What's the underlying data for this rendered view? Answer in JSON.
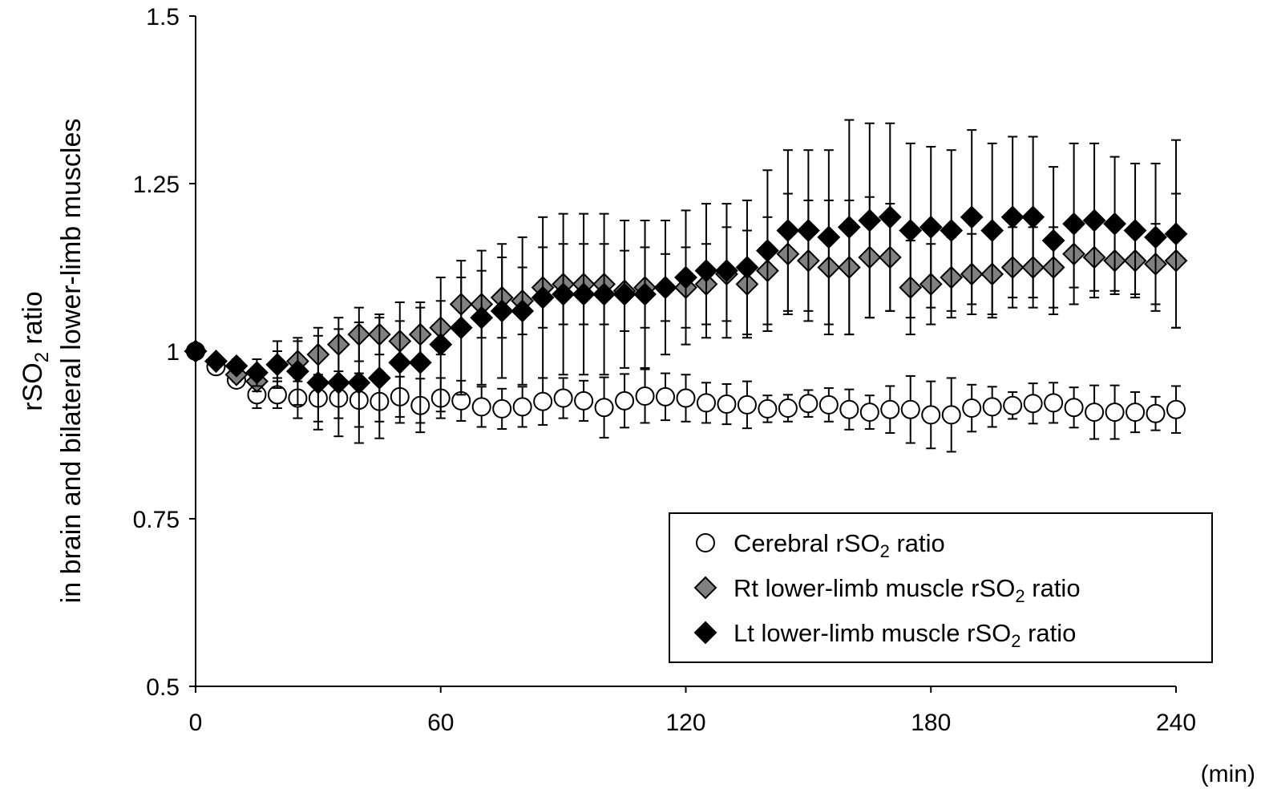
{
  "chart_data": {
    "type": "scatter",
    "title": "",
    "xlabel": "(min)",
    "ylabel_line1": "rSO2 ratio",
    "ylabel_line2": "in brain and bilateral lower-limb muscles",
    "xlim": [
      0,
      240
    ],
    "ylim": [
      0.5,
      1.5
    ],
    "xticks": [
      "0",
      "60",
      "120",
      "180",
      "240"
    ],
    "yticks": [
      "0.5",
      "0.75",
      "1",
      "1.25",
      "1.5"
    ],
    "grid": false,
    "legend_placement": "bottom-right",
    "x": [
      0,
      5,
      10,
      15,
      20,
      25,
      30,
      35,
      40,
      45,
      50,
      55,
      60,
      65,
      70,
      75,
      80,
      85,
      90,
      95,
      100,
      105,
      110,
      115,
      120,
      125,
      130,
      135,
      140,
      145,
      150,
      155,
      160,
      165,
      170,
      175,
      180,
      185,
      190,
      195,
      200,
      205,
      210,
      215,
      220,
      225,
      230,
      235,
      240
    ],
    "series": [
      {
        "name": "Cerebral rSO2 ratio",
        "marker": "circle",
        "color": "#ffffff",
        "values": [
          1.0,
          0.977,
          0.957,
          0.935,
          0.935,
          0.93,
          0.93,
          0.93,
          0.927,
          0.925,
          0.932,
          0.919,
          0.93,
          0.926,
          0.917,
          0.914,
          0.917,
          0.925,
          0.93,
          0.926,
          0.916,
          0.926,
          0.933,
          0.932,
          0.93,
          0.923,
          0.921,
          0.92,
          0.914,
          0.915,
          0.922,
          0.92,
          0.913,
          0.909,
          0.913,
          0.913,
          0.905,
          0.905,
          0.915,
          0.917,
          0.919,
          0.922,
          0.923,
          0.916,
          0.909,
          0.909,
          0.909,
          0.907,
          0.913
        ],
        "error": [
          0,
          0.005,
          0.01,
          0.02,
          0.02,
          0.03,
          0.035,
          0.03,
          0.04,
          0.03,
          0.03,
          0.04,
          0.03,
          0.03,
          0.03,
          0.03,
          0.03,
          0.035,
          0.03,
          0.03,
          0.045,
          0.04,
          0.04,
          0.035,
          0.035,
          0.03,
          0.03,
          0.035,
          0.02,
          0.02,
          0.02,
          0.025,
          0.03,
          0.025,
          0.035,
          0.05,
          0.05,
          0.055,
          0.035,
          0.03,
          0.02,
          0.03,
          0.03,
          0.03,
          0.04,
          0.04,
          0.03,
          0.025,
          0.035
        ]
      },
      {
        "name": "Rt lower-limb muscle rSO2 ratio",
        "marker": "diamond",
        "color": "#808080",
        "values": [
          1.0,
          0.985,
          0.965,
          0.955,
          0.98,
          0.985,
          0.995,
          1.01,
          1.025,
          1.025,
          1.015,
          1.025,
          1.035,
          1.07,
          1.07,
          1.08,
          1.075,
          1.095,
          1.1,
          1.1,
          1.1,
          1.09,
          1.095,
          1.095,
          1.095,
          1.1,
          1.115,
          1.1,
          1.12,
          1.145,
          1.135,
          1.125,
          1.125,
          1.14,
          1.14,
          1.095,
          1.1,
          1.11,
          1.115,
          1.115,
          1.125,
          1.125,
          1.125,
          1.145,
          1.14,
          1.135,
          1.135,
          1.13,
          1.135
        ],
        "error": [
          0,
          0.005,
          0.01,
          0.015,
          0.02,
          0.03,
          0.04,
          0.04,
          0.04,
          0.03,
          0.03,
          0.04,
          0.04,
          0.04,
          0.05,
          0.06,
          0.05,
          0.06,
          0.06,
          0.06,
          0.06,
          0.06,
          0.06,
          0.05,
          0.06,
          0.06,
          0.07,
          0.08,
          0.08,
          0.09,
          0.09,
          0.1,
          0.1,
          0.09,
          0.08,
          0.07,
          0.06,
          0.06,
          0.06,
          0.06,
          0.06,
          0.06,
          0.06,
          0.05,
          0.05,
          0.05,
          0.05,
          0.06,
          0.1
        ]
      },
      {
        "name": "Lt lower-limb muscle rSO2 ratio",
        "marker": "diamond",
        "color": "#000000",
        "values": [
          1.0,
          0.985,
          0.978,
          0.968,
          0.98,
          0.97,
          0.953,
          0.953,
          0.953,
          0.96,
          0.983,
          0.983,
          1.01,
          1.035,
          1.05,
          1.06,
          1.06,
          1.08,
          1.085,
          1.085,
          1.085,
          1.085,
          1.085,
          1.095,
          1.11,
          1.12,
          1.12,
          1.125,
          1.15,
          1.18,
          1.18,
          1.17,
          1.185,
          1.195,
          1.2,
          1.18,
          1.185,
          1.18,
          1.2,
          1.18,
          1.2,
          1.2,
          1.165,
          1.19,
          1.195,
          1.19,
          1.18,
          1.17,
          1.175
        ],
        "error": [
          0,
          0.005,
          0.01,
          0.02,
          0.035,
          0.05,
          0.07,
          0.08,
          0.09,
          0.09,
          0.09,
          0.09,
          0.1,
          0.1,
          0.1,
          0.1,
          0.11,
          0.12,
          0.12,
          0.12,
          0.12,
          0.11,
          0.11,
          0.1,
          0.1,
          0.1,
          0.1,
          0.1,
          0.12,
          0.12,
          0.12,
          0.13,
          0.16,
          0.145,
          0.14,
          0.13,
          0.12,
          0.12,
          0.13,
          0.13,
          0.12,
          0.12,
          0.11,
          0.12,
          0.115,
          0.1,
          0.1,
          0.11,
          0.14
        ]
      }
    ],
    "legend": [
      {
        "prefix": "Cerebral rSO",
        "sub": "2",
        "suffix": " ratio"
      },
      {
        "prefix": "Rt lower-limb muscle rSO",
        "sub": "2",
        "suffix": " ratio"
      },
      {
        "prefix": "Lt lower-limb muscle rSO",
        "sub": "2",
        "suffix": " ratio"
      }
    ],
    "ylabel_parts": {
      "prefix": "rSO",
      "sub": "2",
      "suffix": " ratio"
    }
  }
}
